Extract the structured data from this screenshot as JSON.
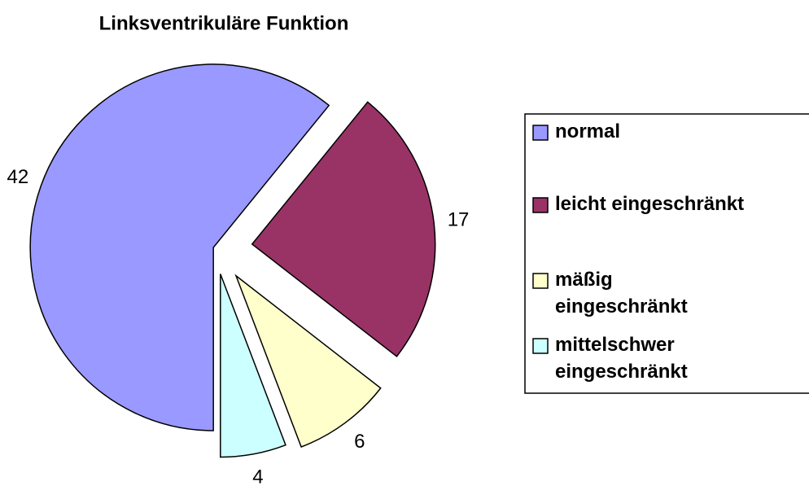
{
  "chart_data": {
    "type": "pie",
    "title": "Linksventrikuläre Funktion",
    "categories": [
      "normal",
      "leicht eingeschränkt",
      "mäßig eingeschränkt",
      "mittelschwer eingeschränkt"
    ],
    "values": [
      42,
      17,
      6,
      4
    ],
    "colors": [
      "#9999ff",
      "#993366",
      "#ffffcc",
      "#ccffff"
    ],
    "legend": "right"
  }
}
